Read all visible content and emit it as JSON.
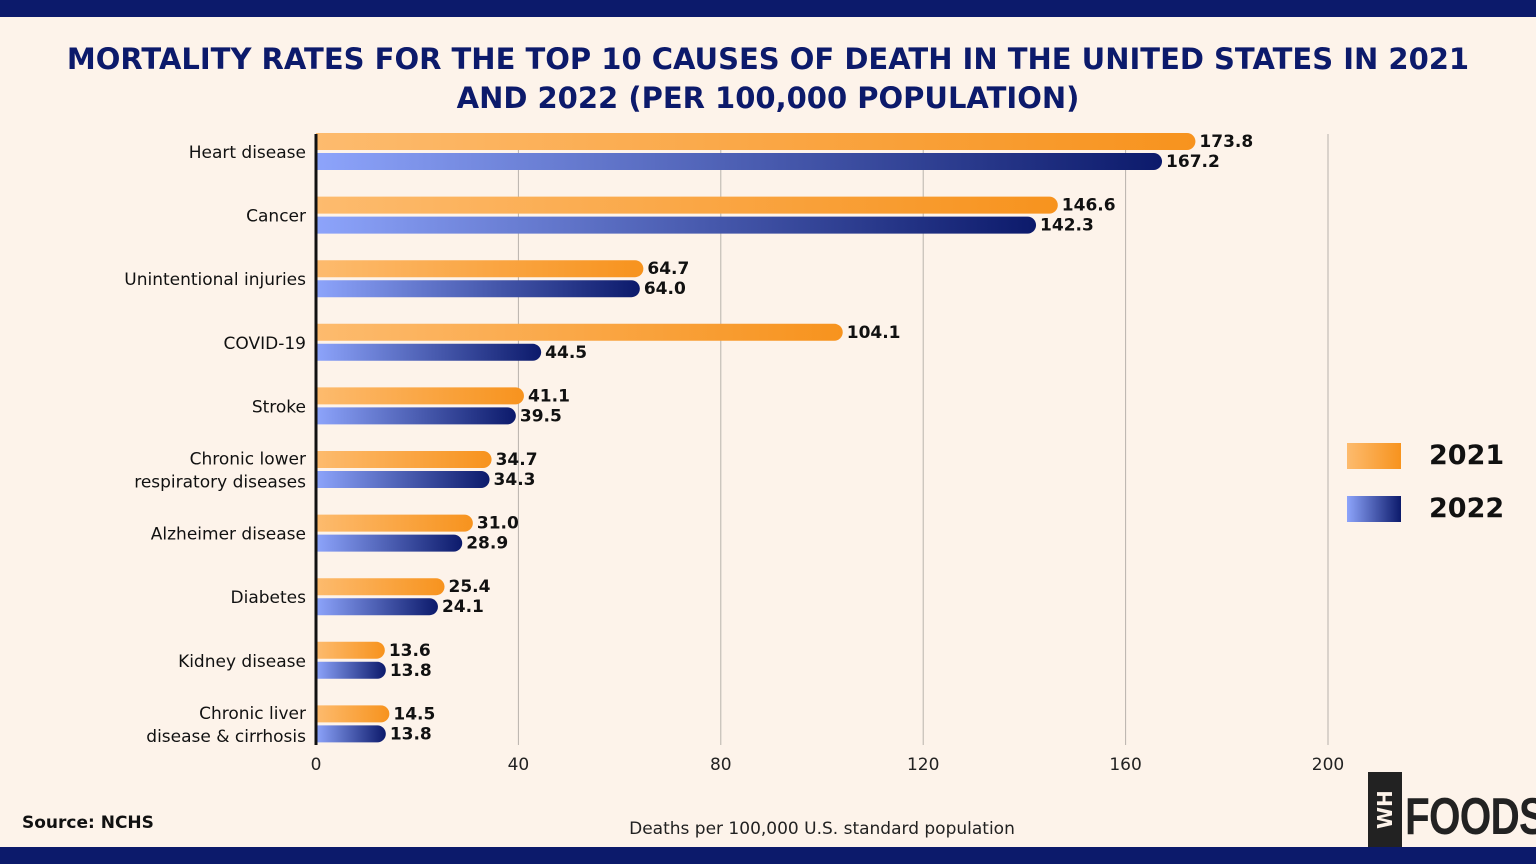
{
  "chart_data": {
    "type": "bar",
    "orientation": "horizontal",
    "title": "MORTALITY RATES FOR THE TOP 10 CAUSES OF DEATH IN THE UNITED STATES IN 2021 AND 2022 (PER 100,000 POPULATION)",
    "xlabel": "Deaths per 100,000 U.S. standard population",
    "xlim": [
      0,
      200
    ],
    "xticks": [
      0,
      40,
      80,
      120,
      160,
      200
    ],
    "grid": true,
    "legend_position": "right",
    "categories": [
      [
        "Heart disease"
      ],
      [
        "Cancer"
      ],
      [
        "Unintentional injuries"
      ],
      [
        "COVID-19"
      ],
      [
        "Stroke"
      ],
      [
        "Chronic lower",
        "respiratory diseases"
      ],
      [
        "Alzheimer disease"
      ],
      [
        "Diabetes"
      ],
      [
        "Kidney disease"
      ],
      [
        "Chronic liver",
        "disease & cirrhosis"
      ]
    ],
    "series": [
      {
        "name": "2021",
        "values": [
          173.8,
          146.6,
          64.7,
          104.1,
          41.1,
          34.7,
          31.0,
          25.4,
          13.6,
          14.5
        ],
        "colors": [
          "#fdbb6e",
          "#f7931e"
        ]
      },
      {
        "name": "2022",
        "values": [
          167.2,
          142.3,
          64.0,
          44.5,
          39.5,
          34.3,
          28.9,
          24.1,
          13.8,
          13.8
        ],
        "colors": [
          "#8da4fb",
          "#0c1a6b"
        ]
      }
    ]
  },
  "source": "Source: NCHS",
  "logo": {
    "mark": "WH",
    "text": "FOODS"
  }
}
